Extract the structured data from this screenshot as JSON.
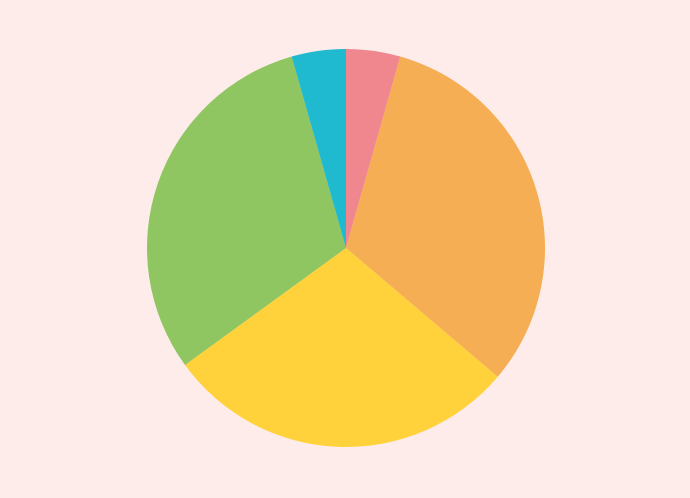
{
  "background": "#fdecea",
  "chart_data": {
    "type": "pie",
    "start_angle": "top",
    "direction": "clockwise",
    "legend": "none",
    "values": [
      4.4,
      31.8,
      28.8,
      30.6,
      4.4
    ],
    "colors": [
      "#f0878f",
      "#f5ae53",
      "#ffd23c",
      "#8fc662",
      "#1fb9d0"
    ]
  }
}
